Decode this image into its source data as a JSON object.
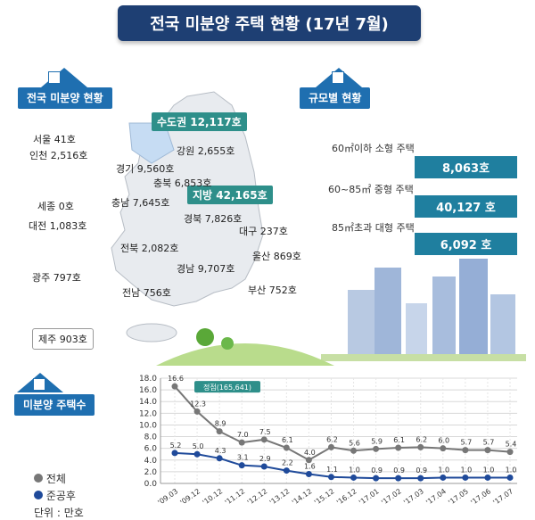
{
  "title": "전국 미분양 주택 현황 (17년 7월)",
  "sections": {
    "national": "전국 미분양 현황",
    "by_size": "규모별 현황",
    "trend": "미분양 주택수"
  },
  "map": {
    "capital_area": "수도권 12,117호",
    "provinces_total": "지방 42,165호",
    "regions": [
      {
        "name": "서울 41호"
      },
      {
        "name": "인천 2,516호"
      },
      {
        "name": "경기 9,560호"
      },
      {
        "name": "강원 2,655호"
      },
      {
        "name": "충북 6,853호"
      },
      {
        "name": "세종 0호"
      },
      {
        "name": "충남 7,645호"
      },
      {
        "name": "대전 1,083호"
      },
      {
        "name": "경북 7,826호"
      },
      {
        "name": "대구 237호"
      },
      {
        "name": "전북 2,082호"
      },
      {
        "name": "울산 869호"
      },
      {
        "name": "광주 797호"
      },
      {
        "name": "경남 9,707호"
      },
      {
        "name": "전남 756호"
      },
      {
        "name": "부산 752호"
      },
      {
        "name": "제주 903호"
      }
    ]
  },
  "sizes": [
    {
      "label": "60㎡이하 소형 주택",
      "value": "8,063호"
    },
    {
      "label": "60~85㎡ 중형 주택",
      "value": "40,127 호"
    },
    {
      "label": "85㎡초과 대형 주택",
      "value": "6,092 호"
    }
  ],
  "chart_data": {
    "type": "line",
    "x": [
      "'09.03",
      "'09.12",
      "'10.12",
      "'11.12",
      "'12.12",
      "'13.12",
      "'14.12",
      "'15.12",
      "'16.12",
      "'17.01",
      "'17.02",
      "'17.03",
      "'17.04",
      "'17.05",
      "'17.06",
      "'17.07"
    ],
    "series": [
      {
        "name": "전체",
        "values": [
          16.6,
          12.3,
          8.9,
          7.0,
          7.5,
          6.1,
          4.0,
          6.2,
          5.6,
          5.9,
          6.1,
          6.2,
          6.0,
          5.7,
          5.7,
          5.4
        ],
        "labels": [
          "16.6",
          "12.3",
          "8.9",
          "7.0",
          "7.5",
          "6.1",
          "4.0",
          "6.2",
          "5.6",
          "5.9",
          "6.1",
          "6.2",
          "6.0",
          "5.7",
          "5.7",
          "5.4"
        ]
      },
      {
        "name": "준공후",
        "values": [
          5.2,
          5.0,
          4.3,
          3.1,
          2.9,
          2.2,
          1.6,
          1.1,
          1.0,
          0.9,
          0.9,
          0.9,
          1.0,
          1.0,
          1.0,
          1.0
        ],
        "labels": [
          "5.2",
          "5.0",
          "4.3",
          "3.1",
          "2.9",
          "2.2",
          "1.6",
          "1.1",
          "1.0",
          "0.9",
          "0.9",
          "0.9",
          "1.0",
          "1.0",
          "1.0",
          "1.0"
        ]
      }
    ],
    "y_ticks": [
      "0.0",
      "2.0",
      "4.0",
      "6.0",
      "8.0",
      "10.0",
      "12.0",
      "14.0",
      "16.0",
      "18.0"
    ],
    "ylim": [
      0,
      18
    ],
    "annotation": "정점(165,641)",
    "unit": "단위 : 만호",
    "colors": {
      "total": "#777777",
      "completed": "#1f4a9a",
      "accent": "#2e8f8a"
    }
  }
}
